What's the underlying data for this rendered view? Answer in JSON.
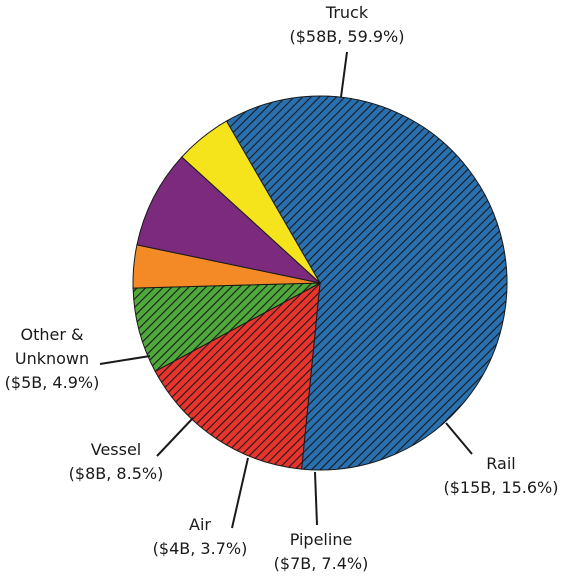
{
  "chart_data": {
    "type": "pie",
    "title": "",
    "unit": "billion USD",
    "slices": [
      {
        "name": "Truck",
        "value_text": "($58B, 59.9%)",
        "value": 58,
        "percent": 59.9,
        "color": "#2870b0",
        "pattern": "hatch"
      },
      {
        "name": "Rail",
        "value_text": "($15B, 15.6%)",
        "value": 15,
        "percent": 15.6,
        "color": "#e8342c",
        "pattern": "hatch"
      },
      {
        "name": "Pipeline",
        "value_text": "($7B, 7.4%)",
        "value": 7,
        "percent": 7.4,
        "color": "#4ea83a",
        "pattern": "hatch"
      },
      {
        "name": "Air",
        "value_text": "($4B, 3.7%)",
        "value": 4,
        "percent": 3.7,
        "color": "#f48a26",
        "pattern": "solid"
      },
      {
        "name": "Vessel",
        "value_text": "($8B, 8.5%)",
        "value": 8,
        "percent": 8.5,
        "color": "#7b2a7e",
        "pattern": "solid"
      },
      {
        "name": "Other & Unknown",
        "name_lines": [
          "Other &",
          "Unknown"
        ],
        "value_text": "($5B, 4.9%)",
        "value": 5,
        "percent": 4.9,
        "color": "#f5e31c",
        "pattern": "solid"
      }
    ],
    "legend": "none"
  }
}
